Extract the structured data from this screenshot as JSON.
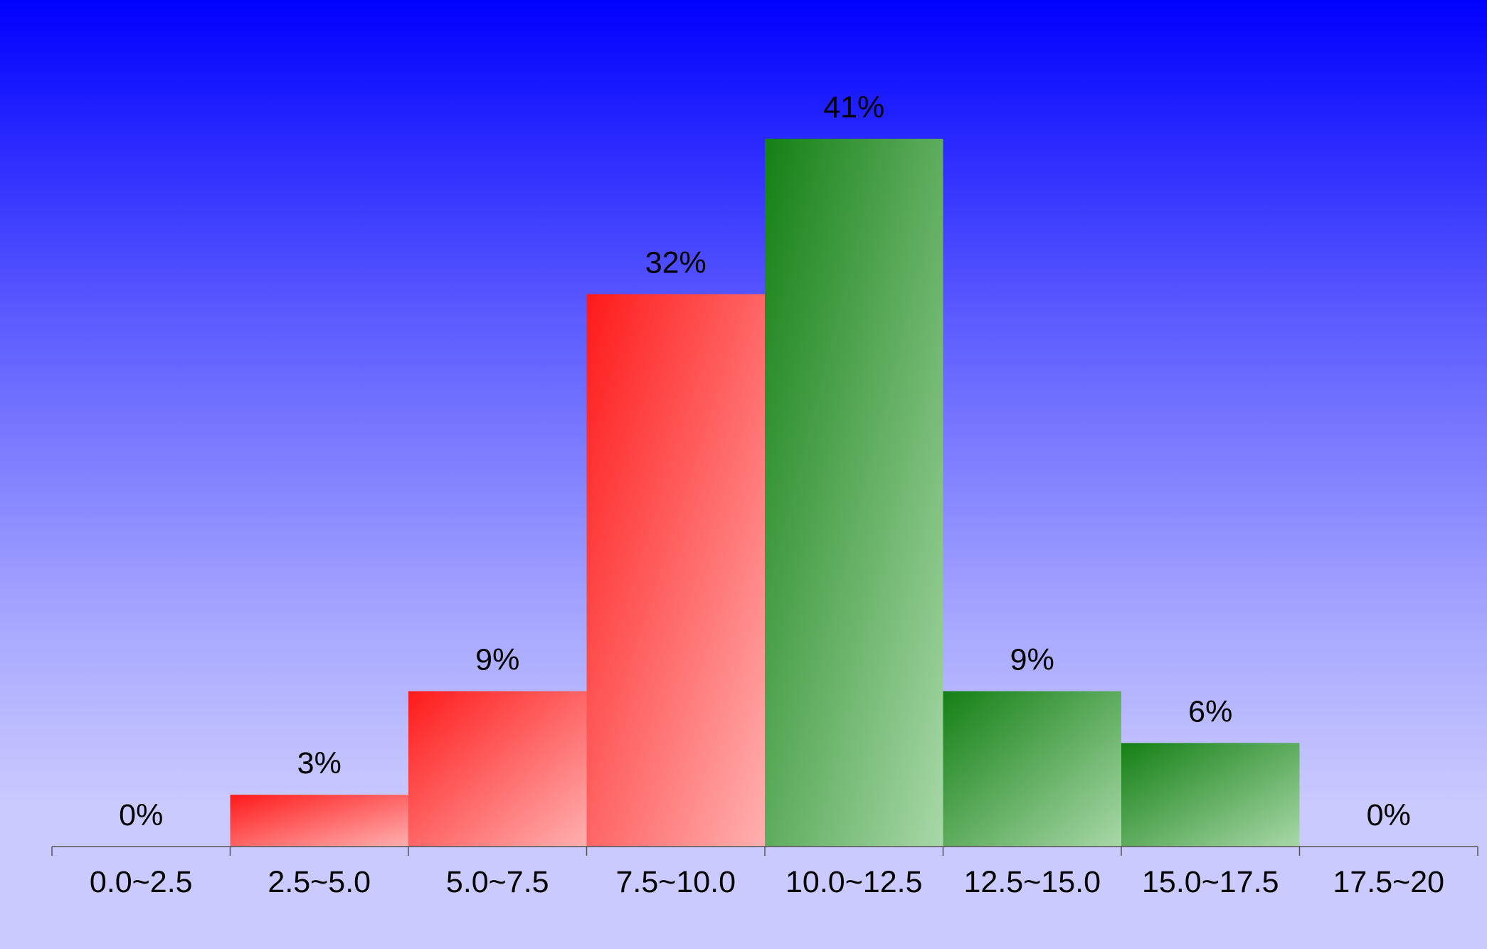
{
  "chart_data": {
    "type": "bar",
    "categories": [
      "0.0~2.5",
      "2.5~5.0",
      "5.0~7.5",
      "7.5~10.0",
      "10.0~12.5",
      "12.5~15.0",
      "15.0~17.5",
      "17.5~20"
    ],
    "values": [
      0,
      3,
      9,
      32,
      41,
      9,
      6,
      0
    ],
    "value_labels": [
      "0%",
      "3%",
      "9%",
      "32%",
      "41%",
      "9%",
      "6%",
      "0%"
    ],
    "bar_colors": [
      "#ff1a1a",
      "#ff1a1a",
      "#ff1a1a",
      "#ff1a1a",
      "#148014",
      "#148014",
      "#148014",
      "#148014"
    ],
    "ylim": [
      0,
      45
    ],
    "grid": false,
    "legend": "none"
  }
}
